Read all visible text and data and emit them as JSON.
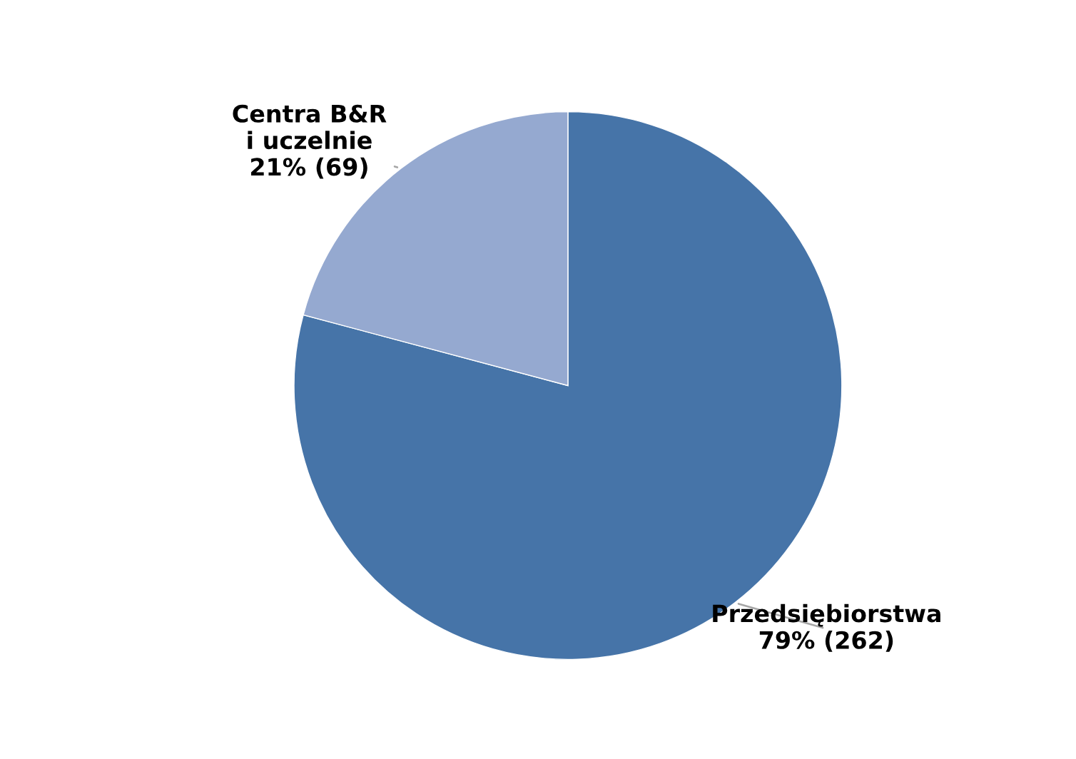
{
  "chart_data": {
    "type": "pie",
    "categories": [
      "Przedsiębiorstwa",
      "Centra B&R\ni uczelnie"
    ],
    "values": [
      262,
      69
    ],
    "value_labels": [
      "79% (262)",
      "21% (69)"
    ],
    "colors": [
      "#4674a8",
      "#95a9d0"
    ],
    "legend": false
  }
}
